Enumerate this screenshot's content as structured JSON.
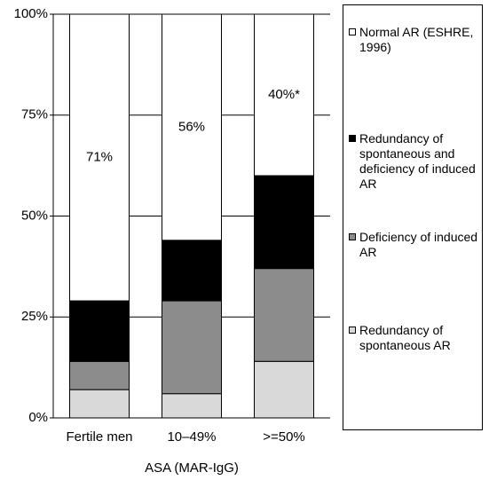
{
  "chart_data": {
    "type": "stacked_bar",
    "x_label": "ASA (MAR-IgG)",
    "categories": [
      "Fertile men",
      "10–49%",
      ">=50%"
    ],
    "series": [
      {
        "name": "Redundancy of spontaneous AR",
        "color": "#d9d9d9",
        "values": [
          7,
          6,
          14
        ]
      },
      {
        "name": "Deficiency of induced AR",
        "color": "#8c8c8c",
        "values": [
          7,
          23,
          23
        ]
      },
      {
        "name": "Redundancy of spontaneous and deficiency of induced AR",
        "color": "#000000",
        "values": [
          15,
          15,
          23
        ]
      },
      {
        "name": "Normal AR (ESHRE, 1996)",
        "color": "#ffffff",
        "values": [
          71,
          56,
          40
        ],
        "value_labels": [
          "71%",
          "56%",
          "40%*"
        ]
      }
    ],
    "ylim": [
      0,
      100
    ],
    "yticks": [
      {
        "value": 0,
        "label": "0%"
      },
      {
        "value": 25,
        "label": "25%"
      },
      {
        "value": 50,
        "label": "50%"
      },
      {
        "value": 75,
        "label": "75%"
      },
      {
        "value": 100,
        "label": "100%"
      }
    ],
    "grid": true,
    "legend": "right"
  }
}
